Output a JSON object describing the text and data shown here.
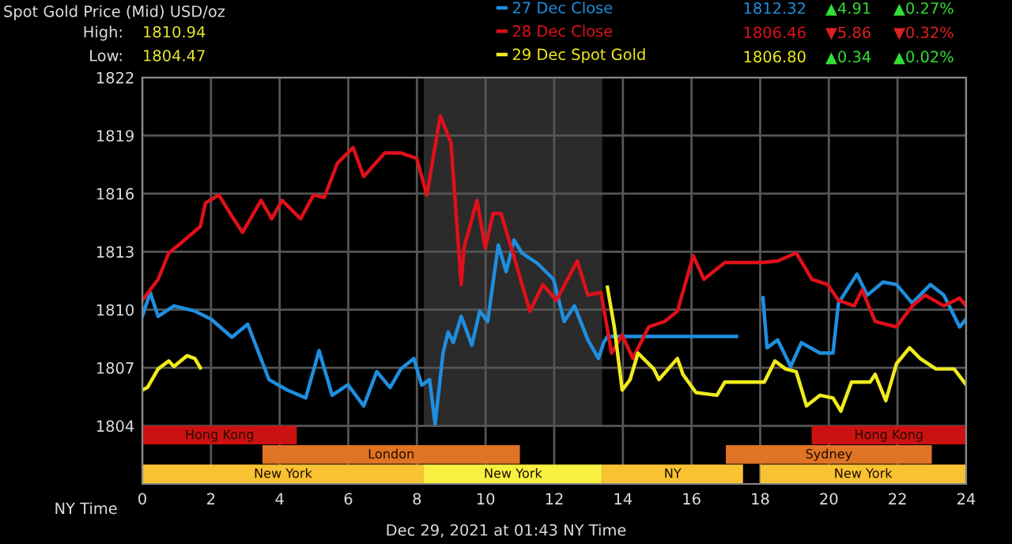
{
  "chart_data": {
    "type": "line",
    "title": "Spot Gold Price (Mid) USD/oz",
    "xlabel": "NY Time",
    "annotations": [
      "High:",
      "1810.94",
      "Low:",
      "1804.47",
      "1812.32",
      "▲4.91",
      "▲0.27%",
      "1806.46",
      "▼5.86",
      "▼0.32%",
      "1806.80",
      "▲0.34",
      "▲0.02%",
      "Dec 29, 2021 at 01:43 NY Time"
    ],
    "series": [
      {
        "name": "27 Dec Close",
        "color": "#1e8fe0",
        "x": [
          0,
          0.23,
          0.46,
          0.92,
          1.53,
          2.0,
          2.61,
          3.07,
          3.69,
          4.22,
          4.76,
          5.15,
          5.53,
          5.99,
          6.45,
          6.83,
          7.22,
          7.53,
          7.91,
          8.14,
          8.37,
          8.53,
          8.76,
          8.91,
          9.06,
          9.29,
          9.6,
          9.83,
          10.06,
          10.37,
          10.6,
          10.83,
          11.06,
          11.52,
          11.98,
          12.29,
          12.59,
          12.98,
          13.29,
          13.44,
          13.55,
          17.31,
          17.7,
          18.08,
          18.2,
          18.51,
          18.89,
          19.2,
          19.74,
          20.12,
          20.28,
          20.82,
          21.12,
          21.58,
          21.97,
          22.43,
          22.96,
          23.35,
          23.81,
          24
        ],
        "values": [
          1809.66,
          1810.89,
          1809.66,
          1810.2,
          1809.93,
          1809.52,
          1808.58,
          1809.25,
          1806.39,
          1805.85,
          1805.44,
          1807.89,
          1805.58,
          1806.12,
          1805.03,
          1806.8,
          1805.98,
          1806.94,
          1807.48,
          1806.1,
          1806.39,
          1804.08,
          1807.76,
          1808.85,
          1808.3,
          1809.66,
          1808.17,
          1809.93,
          1809.39,
          1813.34,
          1811.97,
          1813.6,
          1812.93,
          1812.38,
          1811.57,
          1809.39,
          1810.2,
          1808.44,
          1807.48,
          1808.3,
          1808.62,
          1808.62,
          null,
          1810.62,
          1808.03,
          1808.44,
          1807.07,
          1808.3,
          1807.76,
          1807.76,
          1810.34,
          1811.84,
          1810.75,
          1811.43,
          1811.3,
          1810.34,
          1811.3,
          1810.75,
          1809.11,
          1809.52
        ]
      },
      {
        "name": "28 Dec Close",
        "color": "#e0101a",
        "x": [
          0,
          0.46,
          0.77,
          1.15,
          1.69,
          1.84,
          2.23,
          2.61,
          2.92,
          3.46,
          3.77,
          4.07,
          4.61,
          4.99,
          5.3,
          5.68,
          6.14,
          6.45,
          7.06,
          7.53,
          7.99,
          8.29,
          8.68,
          8.99,
          9.29,
          9.37,
          9.75,
          9.99,
          10.22,
          10.45,
          10.75,
          11.29,
          11.67,
          12.06,
          12.67,
          12.98,
          13.36,
          13.67,
          13.98,
          14.29,
          14.75,
          15.21,
          15.59,
          16.05,
          16.36,
          16.97,
          18.05,
          18.51,
          19.05,
          19.51,
          19.97,
          20.28,
          20.74,
          20.97,
          21.35,
          21.97,
          22.43,
          22.81,
          23.35,
          23.81,
          24
        ],
        "values": [
          1810.48,
          1811.57,
          1812.93,
          1813.48,
          1814.3,
          1815.52,
          1815.93,
          1814.83,
          1814.0,
          1815.65,
          1814.7,
          1815.65,
          1814.7,
          1815.93,
          1815.8,
          1817.56,
          1818.38,
          1816.88,
          1818.1,
          1818.1,
          1817.83,
          1815.93,
          1820.01,
          1818.65,
          1811.3,
          1813.2,
          1815.65,
          1813.2,
          1814.97,
          1814.97,
          1813.2,
          1809.93,
          1811.3,
          1810.48,
          1812.52,
          1810.75,
          1810.9,
          1807.76,
          1808.7,
          1807.48,
          1809.11,
          1809.39,
          1809.93,
          1812.79,
          1811.57,
          1812.44,
          1812.44,
          1812.52,
          1812.93,
          1811.57,
          1811.3,
          1810.48,
          1810.2,
          1811.03,
          1809.39,
          1809.11,
          1810.2,
          1810.75,
          1810.2,
          1810.6,
          1810.2
        ]
      },
      {
        "name": "29 Dec Spot Gold",
        "color": "#f0ec1c",
        "x": [
          0,
          0.15,
          0.46,
          0.77,
          0.92,
          1.3,
          1.53,
          1.69,
          7.6,
          13.55,
          13.75,
          13.98,
          14.21,
          14.44,
          14.9,
          15.05,
          15.59,
          15.75,
          16.13,
          16.74,
          16.97,
          18.12,
          18.43,
          18.74,
          19.05,
          19.35,
          19.74,
          20.12,
          20.35,
          20.66,
          21.2,
          21.35,
          21.66,
          21.97,
          22.35,
          22.66,
          23.12,
          23.65,
          24
        ],
        "values": [
          1805.85,
          1805.98,
          1806.94,
          1807.35,
          1807.07,
          1807.62,
          1807.48,
          1807.0,
          null,
          1811.16,
          1809.11,
          1805.85,
          1806.39,
          1807.76,
          1806.94,
          1806.39,
          1807.48,
          1806.66,
          1805.72,
          1805.58,
          1806.26,
          1806.26,
          1807.35,
          1806.94,
          1806.8,
          1805.03,
          1805.58,
          1805.44,
          1804.76,
          1806.26,
          1806.26,
          1806.66,
          1805.3,
          1807.21,
          1808.03,
          1807.48,
          1806.94,
          1806.94,
          1806.12
        ]
      }
    ],
    "xlim": [
      0,
      24
    ],
    "xticks": [
      0,
      2,
      4,
      6,
      8,
      10,
      12,
      14,
      16,
      18,
      20,
      22,
      24
    ],
    "ylim": [
      1801,
      1822
    ],
    "yticks": [
      1804,
      1807,
      1810,
      1813,
      1816,
      1819,
      1822
    ],
    "bands": [
      {
        "axis": "x",
        "from": 8.2,
        "to": 13.4,
        "color": "#2b2b2b"
      },
      {
        "axis": "x",
        "from": 0,
        "to": 4.5,
        "label": "Hong Kong",
        "color": "#cc1111"
      },
      {
        "axis": "x",
        "from": 19.5,
        "to": 24,
        "label": "Hong Kong",
        "color": "#cc1111"
      },
      {
        "axis": "x",
        "from": 3.5,
        "to": 11,
        "label": "London",
        "color": "#e07424"
      },
      {
        "axis": "x",
        "from": 17,
        "to": 23,
        "label": "Sydney",
        "color": "#e07424"
      },
      {
        "axis": "x",
        "from": 0,
        "to": 8.2,
        "label": "New York",
        "color": "#f8c232"
      },
      {
        "axis": "x",
        "from": 8.2,
        "to": 13.4,
        "label": "New York",
        "color": "#f8f040"
      },
      {
        "axis": "x",
        "from": 13.4,
        "to": 17.5,
        "label": "NY",
        "color": "#f8c232"
      },
      {
        "axis": "x",
        "from": 18,
        "to": 24,
        "label": "New York",
        "color": "#f8c232"
      }
    ],
    "grid": true,
    "legend": "top right",
    "line_style": "solid",
    "marker": "none"
  }
}
